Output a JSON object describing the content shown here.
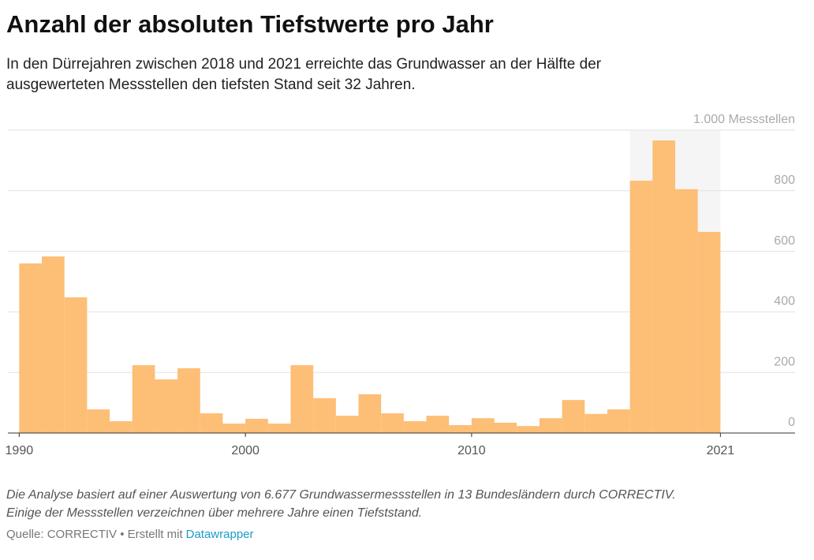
{
  "chart_data": {
    "type": "bar",
    "title": "Anzahl der absoluten Tiefstwerte pro Jahr",
    "subtitle": [
      "In den Dürrejahren zwischen 2018 und 2021 erreichte das Grundwasser an der Hälfte der",
      "ausgewerteten Messstellen den tiefsten Stand seit 32 Jahren."
    ],
    "x": [
      1991,
      1992,
      1993,
      1994,
      1995,
      1996,
      1997,
      1998,
      1999,
      2000,
      2001,
      2002,
      2003,
      2004,
      2005,
      2006,
      2007,
      2008,
      2009,
      2010,
      2011,
      2012,
      2013,
      2014,
      2015,
      2016,
      2017,
      2018,
      2019,
      2020,
      2021
    ],
    "values": [
      560,
      583,
      448,
      78,
      39,
      224,
      177,
      214,
      65,
      31,
      47,
      31,
      224,
      115,
      57,
      128,
      65,
      39,
      57,
      26,
      49,
      34,
      23,
      49,
      109,
      63,
      78,
      833,
      966,
      805,
      664
    ],
    "color": "#fdbe76",
    "highlight_range": [
      2017,
      2021
    ],
    "highlight_color": "#f5f5f5",
    "xlim": [
      1989.5,
      2024.3
    ],
    "xticks": [
      1990,
      2000,
      2010,
      2021
    ],
    "ylim": [
      0,
      1000
    ],
    "yticks": [
      0,
      200,
      400,
      600,
      800,
      {
        "value": 1000,
        "label": "1.000 Messstellen"
      }
    ],
    "grid": true,
    "notes": [
      "Die Analyse basiert auf einer Auswertung von 6.677 Grundwassermessstellen in 13 Bundesländern durch CORRECTIV.",
      "Einige der Messstellen verzeichnen über mehrere Jahre einen Tiefststand."
    ],
    "source": "Quelle: CORRECTIV • Erstellt mit",
    "credit_link": "Datawrapper"
  }
}
